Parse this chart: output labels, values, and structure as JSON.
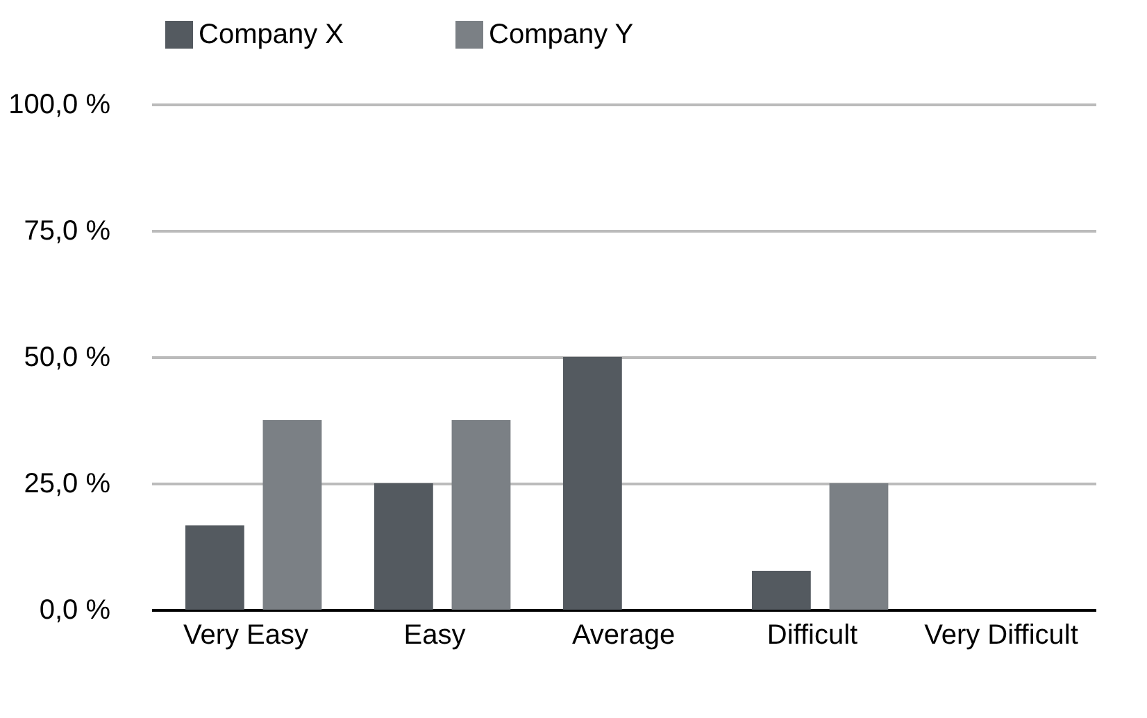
{
  "chart_data": {
    "type": "bar",
    "categories": [
      "Very Easy",
      "Easy",
      "Average",
      "Difficult",
      "Very Difficult"
    ],
    "series": [
      {
        "name": "Company X",
        "color": "#545a60",
        "values": [
          16.7,
          25,
          50,
          7.7,
          0
        ]
      },
      {
        "name": "Company Y",
        "color": "#7b8085",
        "values": [
          37.5,
          37.5,
          0,
          25,
          0
        ]
      }
    ],
    "ylim": [
      0,
      100
    ],
    "yticks": [
      {
        "value": 0,
        "label": "0,0 %"
      },
      {
        "value": 25,
        "label": "25,0 %"
      },
      {
        "value": 50,
        "label": "50,0 %"
      },
      {
        "value": 75,
        "label": "75,0 %"
      },
      {
        "value": 100,
        "label": "100,0 %"
      }
    ],
    "grid": "y",
    "legend": "top"
  }
}
